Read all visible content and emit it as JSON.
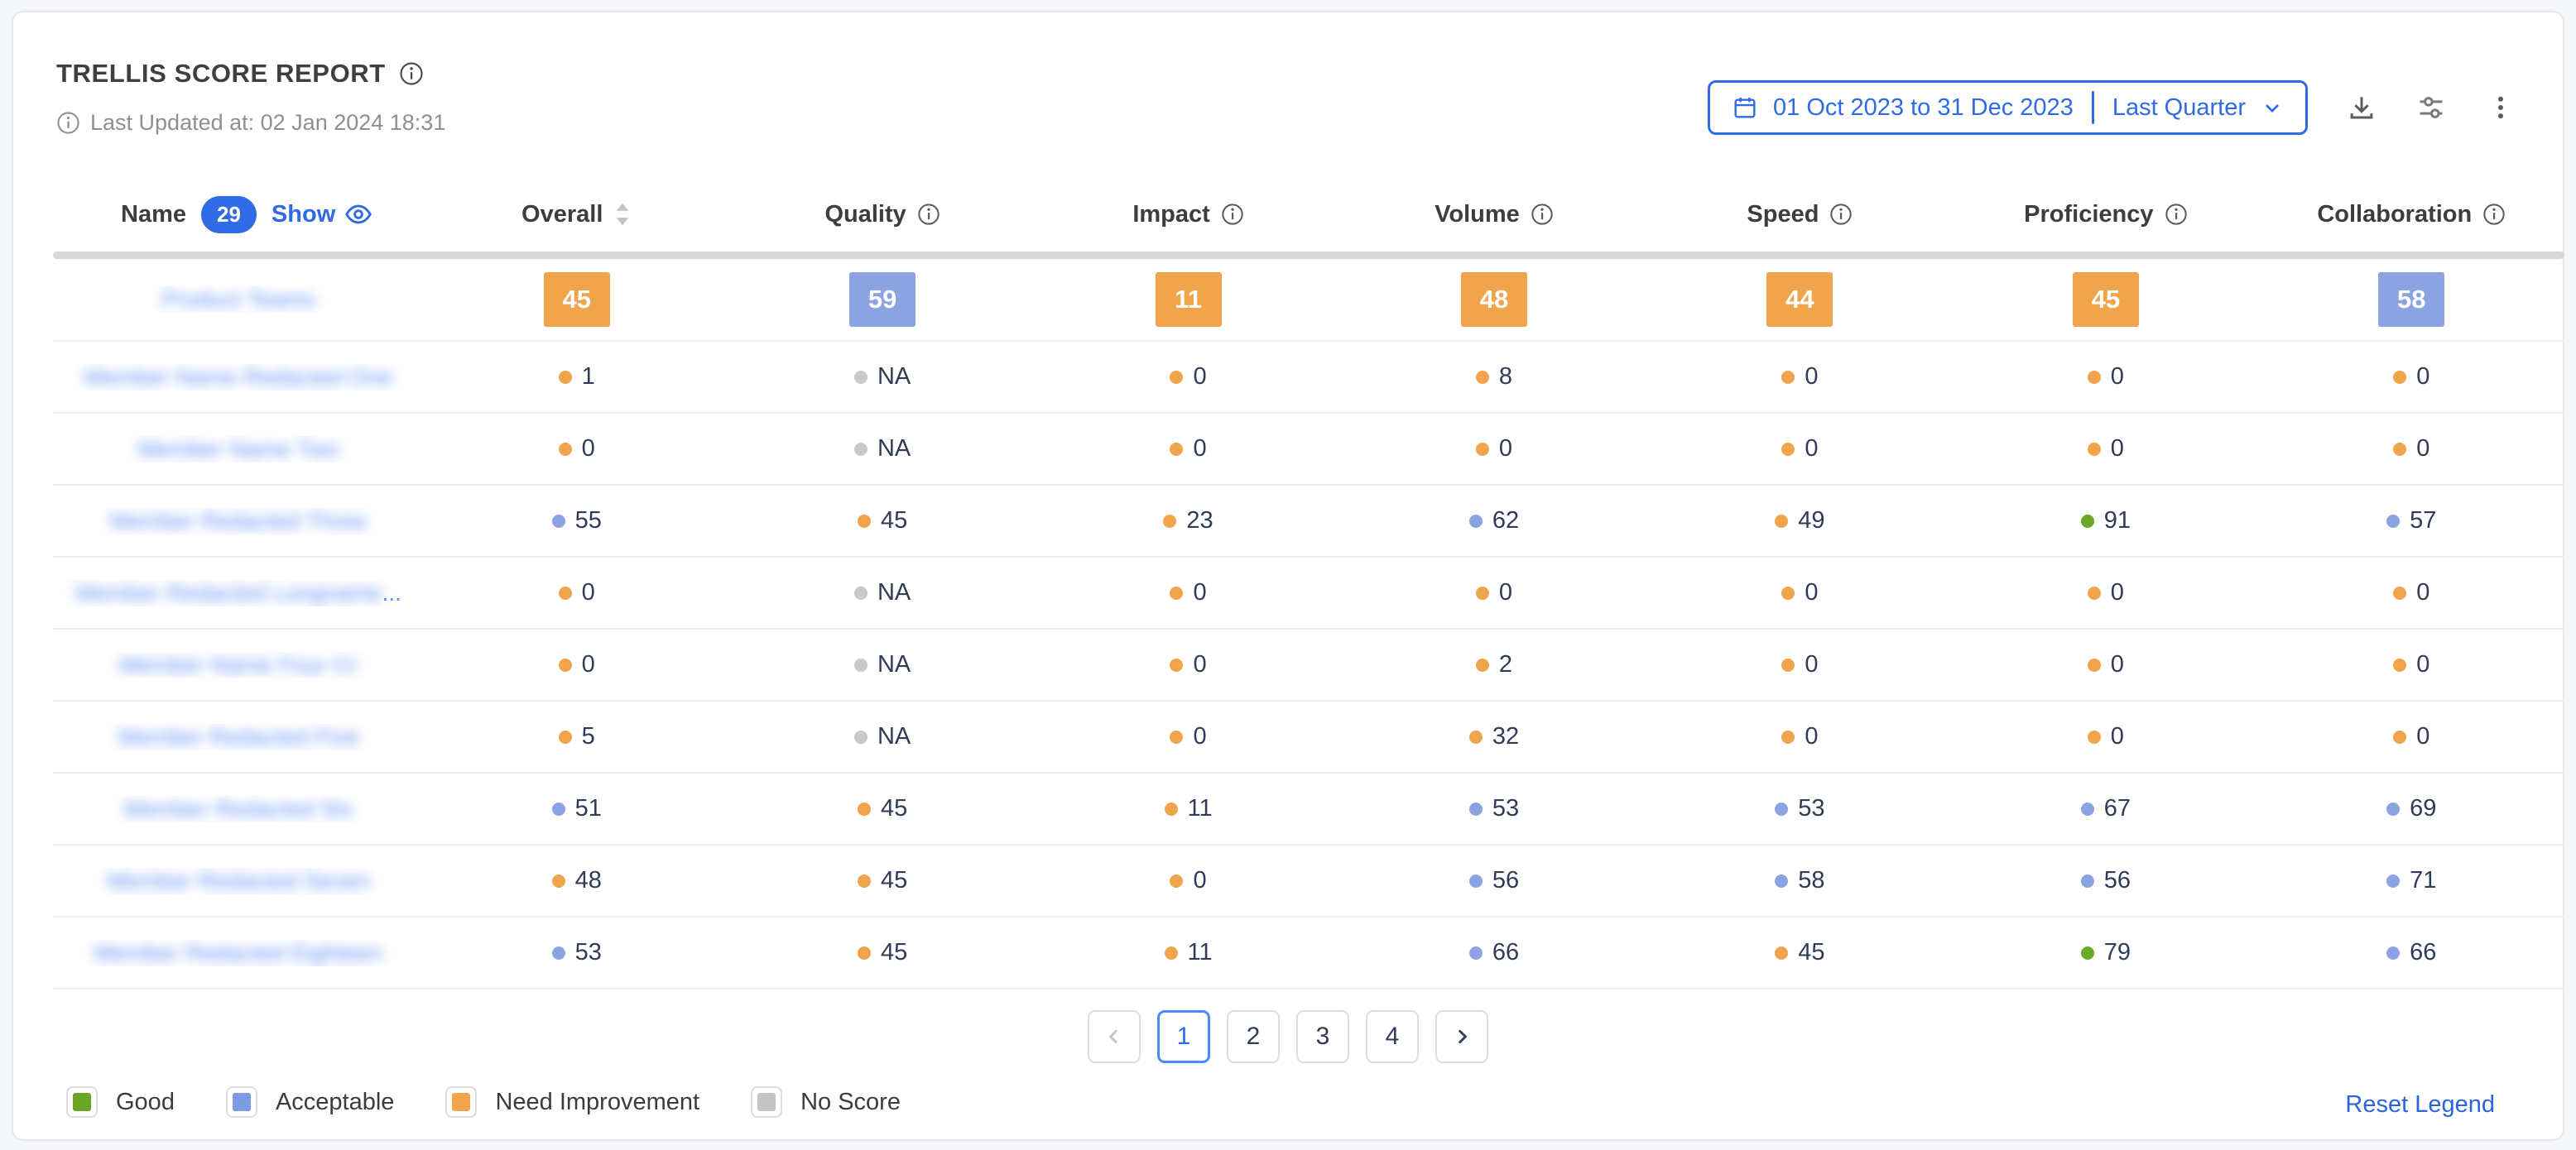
{
  "header": {
    "title": "TRELLIS SCORE REPORT",
    "last_updated": "Last Updated at: 02 Jan 2024 18:31",
    "date_range": {
      "text": "01 Oct 2023 to 31 Dec 2023",
      "preset": "Last Quarter"
    }
  },
  "icons": [
    "info-icon",
    "calendar-icon",
    "chevron-down-icon",
    "download-icon",
    "sliders-icon",
    "kebab-menu-icon",
    "eye-icon",
    "sort-carets-icon",
    "chevron-left-icon",
    "chevron-right-icon"
  ],
  "table": {
    "name_header": {
      "label": "Name",
      "count": "29",
      "show_label": "Show"
    },
    "columns": [
      {
        "label": "Overall",
        "sortable": true
      },
      {
        "label": "Quality"
      },
      {
        "label": "Impact"
      },
      {
        "label": "Volume"
      },
      {
        "label": "Speed"
      },
      {
        "label": "Proficiency"
      },
      {
        "label": "Collaboration"
      }
    ],
    "team_row": {
      "name": "Product Teams",
      "blurred": true,
      "scores": [
        {
          "value": "45",
          "level": "need"
        },
        {
          "value": "59",
          "level": "acceptable"
        },
        {
          "value": "11",
          "level": "need"
        },
        {
          "value": "48",
          "level": "need"
        },
        {
          "value": "44",
          "level": "need"
        },
        {
          "value": "45",
          "level": "need"
        },
        {
          "value": "58",
          "level": "acceptable"
        }
      ]
    },
    "rows": [
      {
        "name": "Member Name Redacted One",
        "blurred": true,
        "scores": [
          {
            "value": "1",
            "level": "need"
          },
          {
            "value": "NA",
            "level": "none"
          },
          {
            "value": "0",
            "level": "need"
          },
          {
            "value": "8",
            "level": "need"
          },
          {
            "value": "0",
            "level": "need"
          },
          {
            "value": "0",
            "level": "need"
          },
          {
            "value": "0",
            "level": "need"
          }
        ]
      },
      {
        "name": "Member Name Two",
        "blurred": true,
        "scores": [
          {
            "value": "0",
            "level": "need"
          },
          {
            "value": "NA",
            "level": "none"
          },
          {
            "value": "0",
            "level": "need"
          },
          {
            "value": "0",
            "level": "need"
          },
          {
            "value": "0",
            "level": "need"
          },
          {
            "value": "0",
            "level": "need"
          },
          {
            "value": "0",
            "level": "need"
          }
        ]
      },
      {
        "name": "Member Redacted Three",
        "blurred": true,
        "scores": [
          {
            "value": "55",
            "level": "acceptable"
          },
          {
            "value": "45",
            "level": "need"
          },
          {
            "value": "23",
            "level": "need"
          },
          {
            "value": "62",
            "level": "acceptable"
          },
          {
            "value": "49",
            "level": "need"
          },
          {
            "value": "91",
            "level": "good"
          },
          {
            "value": "57",
            "level": "acceptable"
          }
        ]
      },
      {
        "name": "Member Redacted Longname",
        "blurred": true,
        "truncated": true,
        "scores": [
          {
            "value": "0",
            "level": "need"
          },
          {
            "value": "NA",
            "level": "none"
          },
          {
            "value": "0",
            "level": "need"
          },
          {
            "value": "0",
            "level": "need"
          },
          {
            "value": "0",
            "level": "need"
          },
          {
            "value": "0",
            "level": "need"
          },
          {
            "value": "0",
            "level": "need"
          }
        ]
      },
      {
        "name": "Member Name Four Cr",
        "blurred": true,
        "scores": [
          {
            "value": "0",
            "level": "need"
          },
          {
            "value": "NA",
            "level": "none"
          },
          {
            "value": "0",
            "level": "need"
          },
          {
            "value": "2",
            "level": "need"
          },
          {
            "value": "0",
            "level": "need"
          },
          {
            "value": "0",
            "level": "need"
          },
          {
            "value": "0",
            "level": "need"
          }
        ]
      },
      {
        "name": "Member Redacted Five",
        "blurred": true,
        "scores": [
          {
            "value": "5",
            "level": "need"
          },
          {
            "value": "NA",
            "level": "none"
          },
          {
            "value": "0",
            "level": "need"
          },
          {
            "value": "32",
            "level": "need"
          },
          {
            "value": "0",
            "level": "need"
          },
          {
            "value": "0",
            "level": "need"
          },
          {
            "value": "0",
            "level": "need"
          }
        ]
      },
      {
        "name": "Member Redacted Six",
        "blurred": true,
        "scores": [
          {
            "value": "51",
            "level": "acceptable"
          },
          {
            "value": "45",
            "level": "need"
          },
          {
            "value": "11",
            "level": "need"
          },
          {
            "value": "53",
            "level": "acceptable"
          },
          {
            "value": "53",
            "level": "acceptable"
          },
          {
            "value": "67",
            "level": "acceptable"
          },
          {
            "value": "69",
            "level": "acceptable"
          }
        ]
      },
      {
        "name": "Member Redacted Seven",
        "blurred": true,
        "scores": [
          {
            "value": "48",
            "level": "need"
          },
          {
            "value": "45",
            "level": "need"
          },
          {
            "value": "0",
            "level": "need"
          },
          {
            "value": "56",
            "level": "acceptable"
          },
          {
            "value": "58",
            "level": "acceptable"
          },
          {
            "value": "56",
            "level": "acceptable"
          },
          {
            "value": "71",
            "level": "acceptable"
          }
        ]
      },
      {
        "name": "Member Redacted Eighteen",
        "blurred": true,
        "scores": [
          {
            "value": "53",
            "level": "acceptable"
          },
          {
            "value": "45",
            "level": "need"
          },
          {
            "value": "11",
            "level": "need"
          },
          {
            "value": "66",
            "level": "acceptable"
          },
          {
            "value": "45",
            "level": "need"
          },
          {
            "value": "79",
            "level": "good"
          },
          {
            "value": "66",
            "level": "acceptable"
          }
        ]
      }
    ]
  },
  "pagination": {
    "pages": [
      "1",
      "2",
      "3",
      "4"
    ],
    "active": "1"
  },
  "legend": {
    "items": [
      {
        "label": "Good",
        "color": "#6aa724"
      },
      {
        "label": "Acceptable",
        "color": "#7d9be0"
      },
      {
        "label": "Need Improvement",
        "color": "#f0a44c"
      },
      {
        "label": "No Score",
        "color": "#c4c4c4"
      }
    ],
    "reset_label": "Reset Legend"
  },
  "colors": {
    "accent_blue": "#2e6be5",
    "levels": {
      "good": "#69a829",
      "acceptable": "#8ca3e2",
      "need": "#f0a44c",
      "none": "#c9c9c9"
    },
    "value_text": "#2f3b57",
    "name_link": "#5f8df5",
    "divider": "#d8d8d8"
  }
}
